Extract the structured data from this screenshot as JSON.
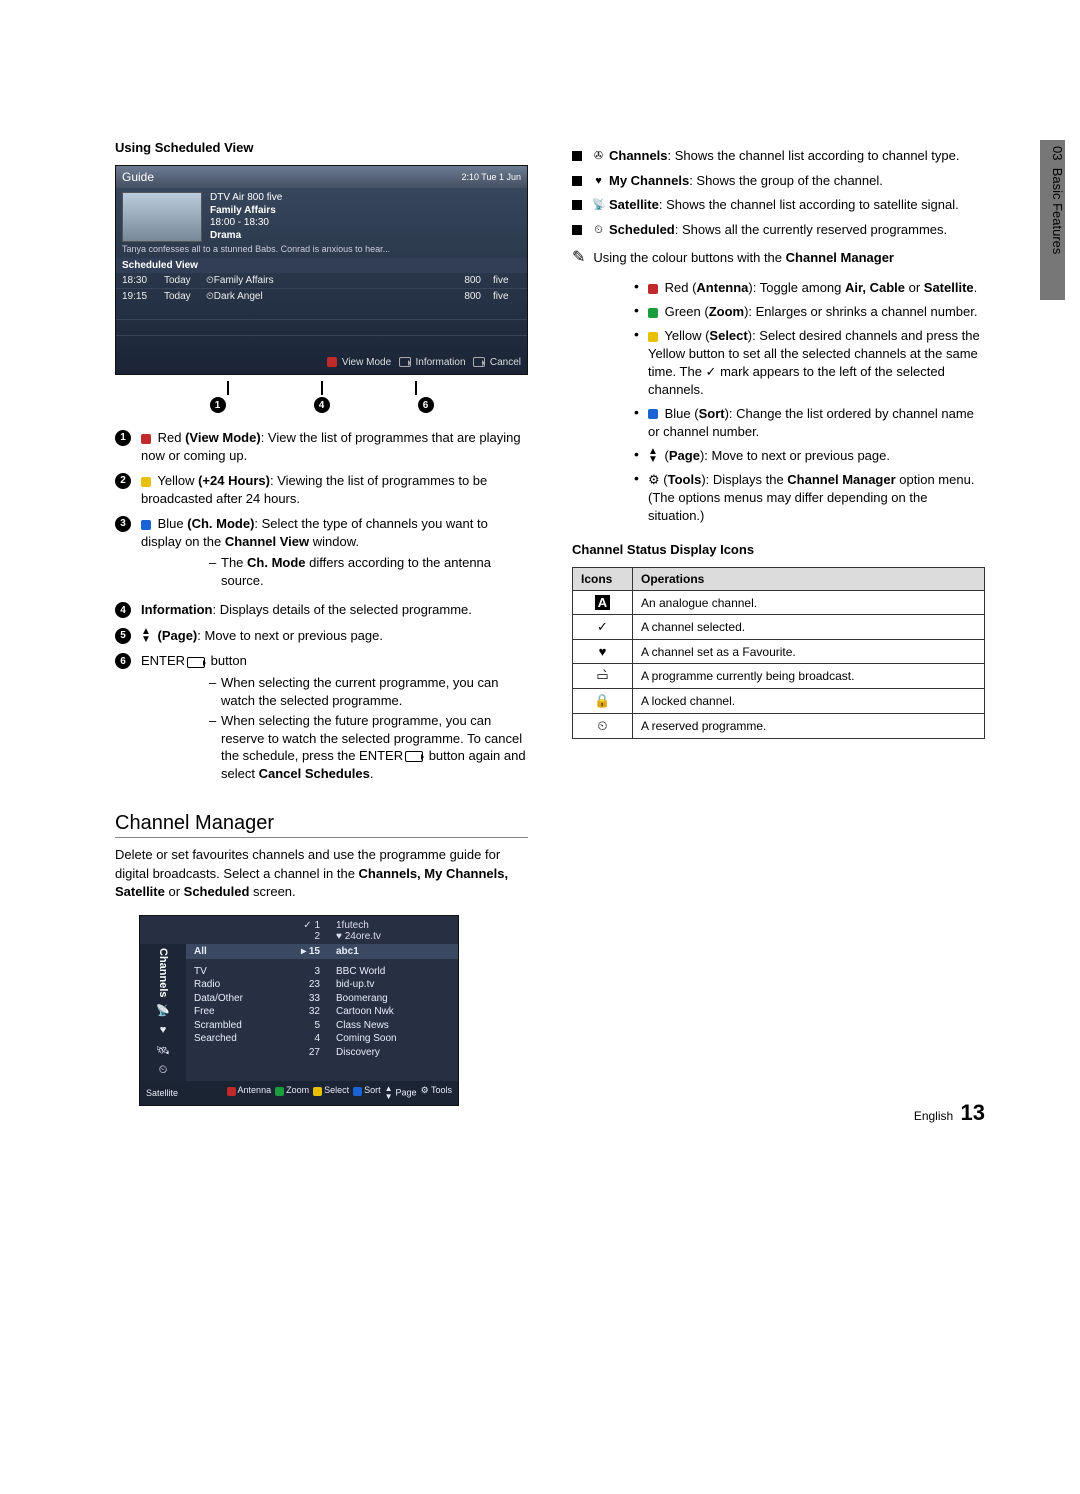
{
  "tab": {
    "chapter": "03",
    "title": "Basic Features"
  },
  "leftCol": {
    "heading": "Using Scheduled View",
    "guide": {
      "title": "Guide",
      "clock": "2:10 Tue 1 Jun",
      "channelLine": "DTV Air 800 five",
      "progTitle": "Family Affairs",
      "progTime": "18:00 - 18:30",
      "genre": "Drama",
      "desc": "Tanya confesses all to a stunned Babs. Conrad is anxious to hear...",
      "schedTitle": "Scheduled View",
      "rows": [
        {
          "time": "18:30",
          "day": "Today",
          "prog": "⏲Family Affairs",
          "num": "800",
          "ch": "five"
        },
        {
          "time": "19:15",
          "day": "Today",
          "prog": "⏲Dark Angel",
          "num": "800",
          "ch": "five"
        }
      ],
      "footer": {
        "viewMode": "View Mode",
        "info": "Information",
        "cancel": "Cancel"
      }
    },
    "pointerNums": [
      "1",
      "4",
      "6"
    ],
    "numbered": [
      {
        "n": "1",
        "color": "red",
        "label": "Red",
        "bold": "(View Mode)",
        "rest": ": View the list of programmes that are playing now or coming up."
      },
      {
        "n": "2",
        "color": "yellow",
        "label": "Yellow",
        "bold": "(+24 Hours)",
        "rest": ": Viewing the list of programmes to be broadcasted after 24 hours."
      },
      {
        "n": "3",
        "color": "blue",
        "label": "Blue",
        "bold": "(Ch. Mode)",
        "rest": ": Select the type of channels you want to display on the ",
        "tail": " window.",
        "boldTail": "Channel View",
        "sub": [
          "The Ch. Mode differs according to the antenna source."
        ],
        "subBold": "Ch. Mode"
      },
      {
        "n": "4",
        "boldOnly": "Information",
        "rest": ": Displays details of the selected programme."
      },
      {
        "n": "5",
        "icon": "page",
        "bold": "(Page)",
        "rest": ": Move to next or previous page."
      },
      {
        "n": "6",
        "text": "ENTER",
        "enter": true,
        "rest": " button",
        "sub": [
          "When selecting the current programme, you can watch the selected programme.",
          "When selecting the future programme, you can reserve to watch the selected programme. To cancel the schedule, press the ENTER↵ button again and select Cancel Schedules."
        ],
        "subBold2": "Cancel Schedules"
      }
    ],
    "chMgrTitle": "Channel Manager",
    "chMgrPara": "Delete or set favourites channels and use the programme guide for digital broadcasts. Select a channel in the ",
    "chMgrBold": "Channels, My Channels, Satellite",
    "chMgrMid": " or ",
    "chMgrBold2": "Scheduled",
    "chMgrEnd": " screen.",
    "cmBox": {
      "sideLabel": "Channels",
      "topRow": {
        "c1": " ",
        "c2a": "✓ 1",
        "c2b": "2",
        "c3a": "1futech",
        "c3b": "♥ 24ore.tv"
      },
      "all": "All",
      "highlightNum": "15",
      "highlightName": "abc1",
      "col1": [
        "TV",
        "Radio",
        "Data/Other",
        "Free",
        "Scrambled",
        "Searched"
      ],
      "col2": [
        "3",
        "23",
        "33",
        "32",
        "5",
        "4",
        "27"
      ],
      "col3": [
        "BBC World",
        "bid-up.tv",
        "Boomerang",
        "Cartoon Nwk",
        "Class News",
        "Coming Soon",
        "Discovery"
      ],
      "footerLeft": "Satellite",
      "footerBtns": [
        "Antenna",
        "Zoom",
        "Select",
        "Sort",
        "Page",
        "Tools"
      ]
    }
  },
  "rightCol": {
    "items": [
      {
        "icon": "✇",
        "bold": "Channels",
        "text": ": Shows the channel list according to channel type."
      },
      {
        "icon": "♥",
        "bold": "My Channels",
        "text": ": Shows the group of the channel."
      },
      {
        "icon": "📡",
        "bold": "Satellite",
        "text": ": Shows the channel list according to satellite signal."
      },
      {
        "icon": "⏲",
        "bold": "Scheduled",
        "text": ": Shows all the currently reserved programmes."
      }
    ],
    "noteLine": "Using the colour buttons with the ",
    "noteBold": "Channel Manager",
    "bullets": [
      {
        "color": "red",
        "pre": "Red (",
        "b": "Antenna",
        "post": "): Toggle among ",
        "b2": "Air, Cable",
        "post2": " or ",
        "b3": "Satellite",
        "end": "."
      },
      {
        "color": "green",
        "pre": "Green (",
        "b": "Zoom",
        "post": "): Enlarges or shrinks a channel number."
      },
      {
        "color": "yellow",
        "pre": "Yellow (",
        "b": "Select",
        "post": "): Select desired channels and press the Yellow button to set all the selected channels at the same time. The ✓ mark appears to the left of the selected channels."
      },
      {
        "color": "blue",
        "pre": "Blue (",
        "b": "Sort",
        "post": "): Change the list ordered by channel name or channel number."
      },
      {
        "icon": "page",
        "pre": "(",
        "b": "Page",
        "post": "): Move to next or previous page."
      },
      {
        "icon": "tools",
        "pre": "(",
        "b": "Tools",
        "post": "): Displays the ",
        "b2": "Channel Manager",
        "post2": " option menu. (The options menus may differ depending on the situation.)"
      }
    ],
    "iconsTitle": "Channel Status Display Icons",
    "tableHead": {
      "c1": "Icons",
      "c2": "Operations"
    },
    "tableRows": [
      {
        "ic": "A",
        "box": true,
        "t": "An analogue channel."
      },
      {
        "ic": "✓",
        "t": "A channel selected."
      },
      {
        "ic": "♥",
        "t": "A channel set as a Favourite."
      },
      {
        "ic": "▭̀",
        "t": "A programme currently being broadcast."
      },
      {
        "ic": "🔒",
        "t": "A locked channel."
      },
      {
        "ic": "⏲",
        "t": "A reserved programme."
      }
    ]
  },
  "footer": {
    "lang": "English",
    "page": "13"
  }
}
